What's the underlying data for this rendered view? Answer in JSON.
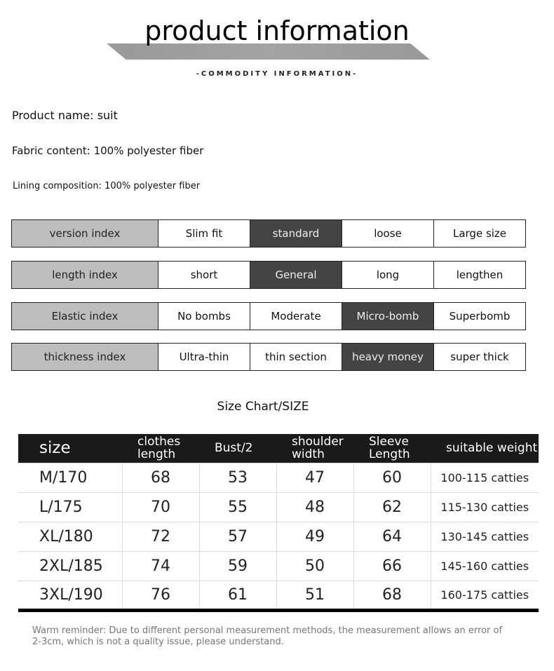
{
  "header": {
    "title": "product information",
    "subtitle": "-COMMODITY INFORMATION-"
  },
  "info": {
    "name": "Product name: suit",
    "fabric": "Fabric content: 100% polyester fiber",
    "lining": "Lining composition: 100% polyester fiber"
  },
  "indices": [
    {
      "label": "version index",
      "options": [
        "Slim fit",
        "standard",
        "loose",
        "Large size"
      ],
      "selected": 1
    },
    {
      "label": "length index",
      "options": [
        "short",
        "General",
        "long",
        "lengthen"
      ],
      "selected": 1
    },
    {
      "label": "Elastic index",
      "options": [
        "No bombs",
        "Moderate",
        "Micro-bomb",
        "Superbomb"
      ],
      "selected": 2
    },
    {
      "label": "thickness index",
      "options": [
        "Ultra-thin",
        "thin section",
        "heavy money",
        "super thick"
      ],
      "selected": 2
    }
  ],
  "size_chart": {
    "title": "Size Chart/SIZE",
    "headers": [
      "size",
      "clothes length",
      "Bust/2",
      "shoulder width",
      "Sleeve Length",
      "suitable weight"
    ],
    "rows": [
      [
        "M/170",
        "68",
        "53",
        "47",
        "60",
        "100-115 catties"
      ],
      [
        "L/175",
        "70",
        "55",
        "48",
        "62",
        "115-130 catties"
      ],
      [
        "XL/180",
        "72",
        "57",
        "49",
        "64",
        "130-145 catties"
      ],
      [
        "2XL/185",
        "74",
        "59",
        "50",
        "66",
        "145-160 catties"
      ],
      [
        "3XL/190",
        "76",
        "61",
        "51",
        "68",
        "160-175 catties"
      ]
    ]
  },
  "note": "Warm reminder: Due to different personal measurement methods, the measurement allows an error of 2-3cm, which is not a quality issue, please understand."
}
